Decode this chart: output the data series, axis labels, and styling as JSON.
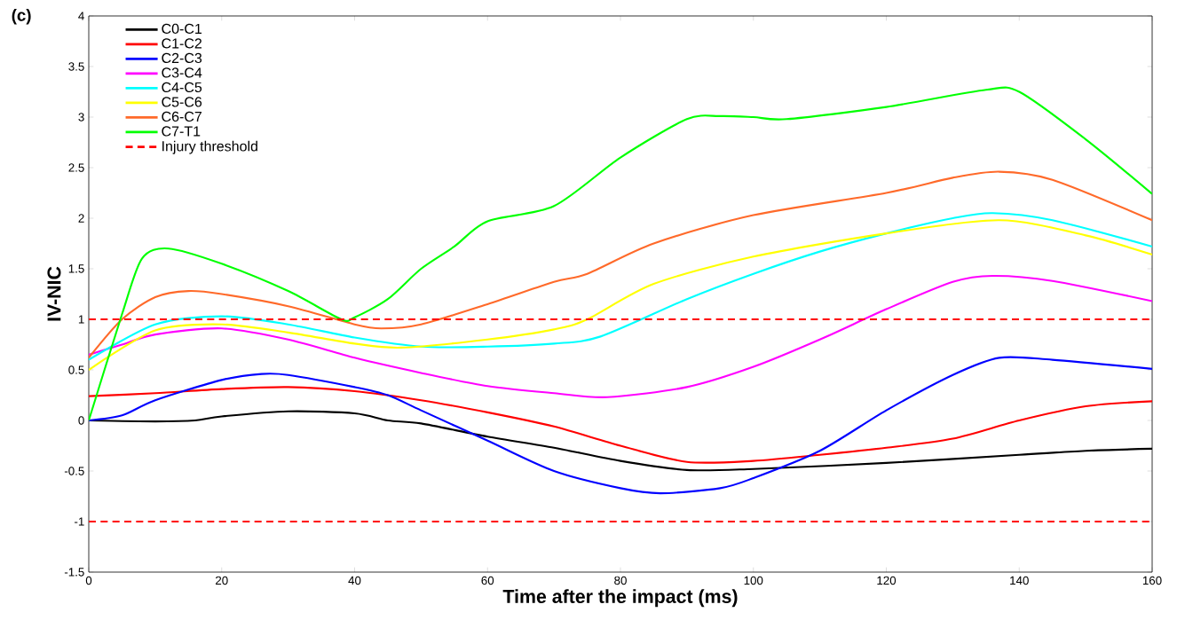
{
  "chart_data": {
    "type": "line",
    "title": "(c)",
    "xlabel": "Time after the impact (ms)",
    "ylabel": "IV-NIC",
    "xlim": [
      0,
      160
    ],
    "xticks": [
      0,
      20,
      40,
      60,
      80,
      100,
      120,
      140,
      160
    ],
    "ylim": [
      -1.5,
      4
    ],
    "yticks": [
      -1.5,
      -1,
      -0.5,
      0,
      0.5,
      1,
      1.5,
      2,
      2.5,
      3,
      3.5,
      4
    ],
    "grid": false,
    "legend": "top left",
    "marker": "none",
    "line_style": "solid",
    "series": [
      {
        "name": "C0-C1",
        "color": "#000000",
        "x": [
          0,
          10,
          16,
          20,
          30,
          40,
          45,
          50,
          60,
          70,
          80,
          90,
          100,
          120,
          140,
          150,
          160
        ],
        "values": [
          0,
          -0.01,
          0,
          0.04,
          0.09,
          0.07,
          0,
          -0.03,
          -0.16,
          -0.27,
          -0.4,
          -0.49,
          -0.48,
          -0.42,
          -0.34,
          -0.3,
          -0.28
        ]
      },
      {
        "name": "C1-C2",
        "color": "#ff0000",
        "x": [
          0,
          10,
          20,
          30,
          40,
          50,
          60,
          70,
          80,
          90,
          100,
          110,
          120,
          130,
          140,
          150,
          160
        ],
        "values": [
          0.24,
          0.27,
          0.31,
          0.33,
          0.29,
          0.2,
          0.08,
          -0.06,
          -0.25,
          -0.41,
          -0.4,
          -0.34,
          -0.27,
          -0.18,
          0,
          0.14,
          0.19
        ]
      },
      {
        "name": "C2-C3",
        "color": "#0000ff",
        "x": [
          0,
          5,
          10,
          20,
          26,
          30,
          40,
          45,
          50,
          60,
          70,
          80,
          86,
          95,
          100,
          110,
          120,
          130,
          137,
          145,
          160
        ],
        "values": [
          0,
          0.05,
          0.2,
          0.4,
          0.46,
          0.45,
          0.33,
          0.25,
          0.1,
          -0.2,
          -0.5,
          -0.67,
          -0.72,
          -0.67,
          -0.57,
          -0.3,
          0.1,
          0.45,
          0.62,
          0.6,
          0.51
        ]
      },
      {
        "name": "C3-C4",
        "color": "#ff00ff",
        "x": [
          0,
          5,
          10,
          20,
          30,
          40,
          50,
          60,
          70,
          78,
          90,
          100,
          110,
          120,
          130,
          136,
          145,
          160
        ],
        "values": [
          0.65,
          0.75,
          0.85,
          0.91,
          0.8,
          0.62,
          0.47,
          0.34,
          0.27,
          0.23,
          0.33,
          0.53,
          0.8,
          1.1,
          1.37,
          1.43,
          1.38,
          1.18
        ]
      },
      {
        "name": "C4-C5",
        "color": "#00ffff",
        "x": [
          0,
          10,
          20,
          30,
          40,
          50,
          60,
          70,
          77,
          90,
          100,
          110,
          120,
          130,
          136,
          145,
          160
        ],
        "values": [
          0.6,
          0.95,
          1.03,
          0.95,
          0.82,
          0.73,
          0.73,
          0.76,
          0.83,
          1.2,
          1.45,
          1.67,
          1.85,
          2,
          2.05,
          1.98,
          1.72
        ]
      },
      {
        "name": "C5-C6",
        "color": "#ffff00",
        "x": [
          0,
          10,
          20,
          30,
          40,
          47,
          60,
          70,
          75,
          85,
          100,
          120,
          137,
          150,
          160
        ],
        "values": [
          0.5,
          0.89,
          0.95,
          0.87,
          0.76,
          0.72,
          0.8,
          0.9,
          1,
          1.35,
          1.62,
          1.85,
          1.98,
          1.83,
          1.64
        ]
      },
      {
        "name": "C6-C7",
        "color": "#ff6a2a",
        "x": [
          0,
          5,
          10,
          15,
          20,
          30,
          40,
          44,
          50,
          60,
          70,
          75,
          85,
          100,
          120,
          130,
          137,
          145,
          160
        ],
        "values": [
          0.62,
          1,
          1.22,
          1.28,
          1.25,
          1.13,
          0.95,
          0.91,
          0.95,
          1.15,
          1.37,
          1.45,
          1.75,
          2.03,
          2.25,
          2.4,
          2.46,
          2.38,
          1.98
        ]
      },
      {
        "name": "C7-T1",
        "color": "#00ff00",
        "x": [
          0,
          5,
          8,
          12,
          20,
          30,
          38,
          40,
          45,
          50,
          55,
          60,
          70,
          80,
          90,
          95,
          100,
          105,
          120,
          135,
          140,
          150,
          160
        ],
        "values": [
          0,
          1.05,
          1.6,
          1.7,
          1.55,
          1.28,
          1,
          1.02,
          1.2,
          1.5,
          1.72,
          1.97,
          2.12,
          2.6,
          2.98,
          3.01,
          3,
          2.98,
          3.1,
          3.27,
          3.25,
          2.78,
          2.24
        ]
      }
    ],
    "ref_lines": [
      {
        "axis": "y",
        "value": 1,
        "label": "Injury threshold",
        "color": "#ff0000",
        "line_style": "dashed"
      },
      {
        "axis": "y",
        "value": -1,
        "color": "#ff0000",
        "line_style": "dashed"
      }
    ]
  }
}
